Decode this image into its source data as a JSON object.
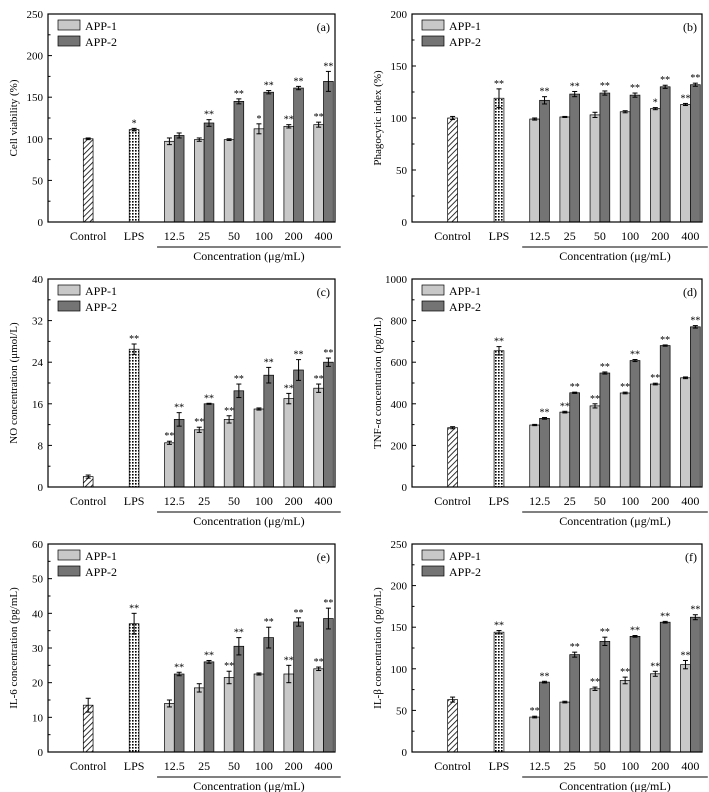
{
  "chart_data": [
    {
      "panel": "(a)",
      "type": "bar",
      "ylabel": "Cell viability (%)",
      "ylim": [
        0,
        250
      ],
      "yticks": [
        0,
        50,
        100,
        150,
        200,
        250
      ],
      "xlabel": "Concentration (μg/mL)",
      "control": {
        "label": "Control",
        "value": 100,
        "err": 1,
        "sig": ""
      },
      "lps": {
        "label": "LPS",
        "value": 111,
        "err": 1.5,
        "sig": "*"
      },
      "categories": [
        "12.5",
        "25",
        "50",
        "100",
        "200",
        "400"
      ],
      "series": [
        {
          "name": "APP-1",
          "values": [
            97,
            99,
            99,
            112,
            115,
            117
          ],
          "errors": [
            4,
            2,
            1,
            6,
            2,
            3
          ],
          "sig": [
            "",
            "",
            "",
            "*",
            "**",
            "**"
          ]
        },
        {
          "name": "APP-2",
          "values": [
            104,
            119,
            145,
            156,
            161,
            169
          ],
          "errors": [
            3,
            4,
            3,
            2,
            2,
            12
          ],
          "sig": [
            "",
            "**",
            "**",
            "**",
            "**",
            "**"
          ]
        }
      ]
    },
    {
      "panel": "(b)",
      "type": "bar",
      "ylabel": "Phagocytic index (%)",
      "ylim": [
        0,
        200
      ],
      "yticks": [
        0,
        50,
        100,
        150,
        200
      ],
      "xlabel": "Concentration (μg/mL)",
      "control": {
        "label": "Control",
        "value": 100,
        "err": 1.5,
        "sig": ""
      },
      "lps": {
        "label": "LPS",
        "value": 119,
        "err": 9,
        "sig": "**"
      },
      "categories": [
        "12.5",
        "25",
        "50",
        "100",
        "200",
        "400"
      ],
      "series": [
        {
          "name": "APP-1",
          "values": [
            99,
            101,
            103,
            106,
            109,
            113
          ],
          "errors": [
            1,
            0.5,
            2.5,
            1,
            1,
            1
          ],
          "sig": [
            "",
            "",
            "",
            "",
            "*",
            "**"
          ]
        },
        {
          "name": "APP-2",
          "values": [
            117,
            123,
            124,
            122,
            130,
            132
          ],
          "errors": [
            3.5,
            2.5,
            2,
            2,
            1.5,
            1.5
          ],
          "sig": [
            "**",
            "**",
            "**",
            "**",
            "**",
            "**"
          ]
        }
      ]
    },
    {
      "panel": "(c)",
      "type": "bar",
      "ylabel": "NO concentration (μmol/L)",
      "ylim": [
        0,
        40
      ],
      "yticks": [
        0,
        8,
        16,
        24,
        32,
        40
      ],
      "xlabel": "Concentration (μg/mL)",
      "control": {
        "label": "Control",
        "value": 2,
        "err": 0.3,
        "sig": ""
      },
      "lps": {
        "label": "LPS",
        "value": 26.5,
        "err": 1,
        "sig": "**"
      },
      "categories": [
        "12.5",
        "25",
        "50",
        "100",
        "200",
        "400"
      ],
      "series": [
        {
          "name": "APP-1",
          "values": [
            8.5,
            11,
            13,
            15,
            17,
            19
          ],
          "errors": [
            0.3,
            0.5,
            0.7,
            0.2,
            1,
            0.8
          ],
          "sig": [
            "**",
            "**",
            "**",
            "",
            "**",
            "**"
          ]
        },
        {
          "name": "APP-2",
          "values": [
            13,
            16,
            18.5,
            21.5,
            22.5,
            24
          ],
          "errors": [
            1.3,
            0.1,
            1.3,
            1.5,
            2,
            0.8
          ],
          "sig": [
            "**",
            "**",
            "**",
            "**",
            "**",
            "**"
          ]
        }
      ]
    },
    {
      "panel": "(d)",
      "type": "bar",
      "ylabel": "TNF-α concentration (pg/mL)",
      "ylim": [
        0,
        1000
      ],
      "yticks": [
        0,
        200,
        400,
        600,
        800,
        1000
      ],
      "xlabel": "Concentration (μg/mL)",
      "control": {
        "label": "Control",
        "value": 285,
        "err": 5,
        "sig": ""
      },
      "lps": {
        "label": "LPS",
        "value": 655,
        "err": 20,
        "sig": "**"
      },
      "categories": [
        "12.5",
        "25",
        "50",
        "100",
        "200",
        "400"
      ],
      "series": [
        {
          "name": "APP-1",
          "values": [
            298,
            360,
            390,
            452,
            495,
            525
          ],
          "errors": [
            3,
            4,
            10,
            4,
            4,
            4
          ],
          "sig": [
            "",
            "**",
            "**",
            "**",
            "**",
            ""
          ]
        },
        {
          "name": "APP-2",
          "values": [
            330,
            453,
            548,
            608,
            680,
            770
          ],
          "errors": [
            4,
            3,
            5,
            5,
            3,
            6
          ],
          "sig": [
            "**",
            "**",
            "**",
            "**",
            "**",
            "**"
          ]
        }
      ]
    },
    {
      "panel": "(e)",
      "type": "bar",
      "ylabel": "IL-6 concentration (pg/mL)",
      "ylim": [
        0,
        60
      ],
      "yticks": [
        0,
        10,
        20,
        30,
        40,
        50,
        60
      ],
      "xlabel": "Concentration (μg/mL)",
      "control": {
        "label": "Control",
        "value": 13.5,
        "err": 2,
        "sig": ""
      },
      "lps": {
        "label": "LPS",
        "value": 37,
        "err": 3,
        "sig": "**"
      },
      "categories": [
        "12.5",
        "25",
        "50",
        "100",
        "200",
        "400"
      ],
      "series": [
        {
          "name": "APP-1",
          "values": [
            14,
            18.5,
            21.5,
            22.5,
            22.5,
            24
          ],
          "errors": [
            1,
            1.2,
            1.8,
            0.3,
            2.5,
            0.5
          ],
          "sig": [
            "",
            "",
            "**",
            "",
            "**",
            "**"
          ]
        },
        {
          "name": "APP-2",
          "values": [
            22.5,
            26,
            30.5,
            33,
            37.5,
            38.5
          ],
          "errors": [
            0.5,
            0.4,
            2.5,
            3,
            1.2,
            3
          ],
          "sig": [
            "**",
            "**",
            "**",
            "**",
            "**",
            "**"
          ]
        }
      ]
    },
    {
      "panel": "(f)",
      "type": "bar",
      "ylabel": "IL-β concentration (pg/mL)",
      "ylim": [
        0,
        250
      ],
      "yticks": [
        0,
        50,
        100,
        150,
        200,
        250
      ],
      "xlabel": "Concentration (μg/mL)",
      "control": {
        "label": "Control",
        "value": 63,
        "err": 3,
        "sig": ""
      },
      "lps": {
        "label": "LPS",
        "value": 144,
        "err": 2,
        "sig": "**"
      },
      "categories": [
        "12.5",
        "25",
        "50",
        "100",
        "200",
        "400"
      ],
      "series": [
        {
          "name": "APP-1",
          "values": [
            42,
            60,
            76,
            86,
            94,
            105
          ],
          "errors": [
            1,
            1,
            2,
            4,
            3,
            5
          ],
          "sig": [
            "**",
            "",
            "**",
            "**",
            "**",
            "**"
          ]
        },
        {
          "name": "APP-2",
          "values": [
            84,
            117,
            133,
            139,
            156,
            162
          ],
          "errors": [
            1,
            3,
            5,
            1,
            1,
            3
          ],
          "sig": [
            "**",
            "**",
            "**",
            "**",
            "**",
            "**"
          ]
        }
      ]
    }
  ],
  "colors": {
    "app1": "#c8c8c8",
    "app2": "#747474",
    "axis": "#000000"
  }
}
